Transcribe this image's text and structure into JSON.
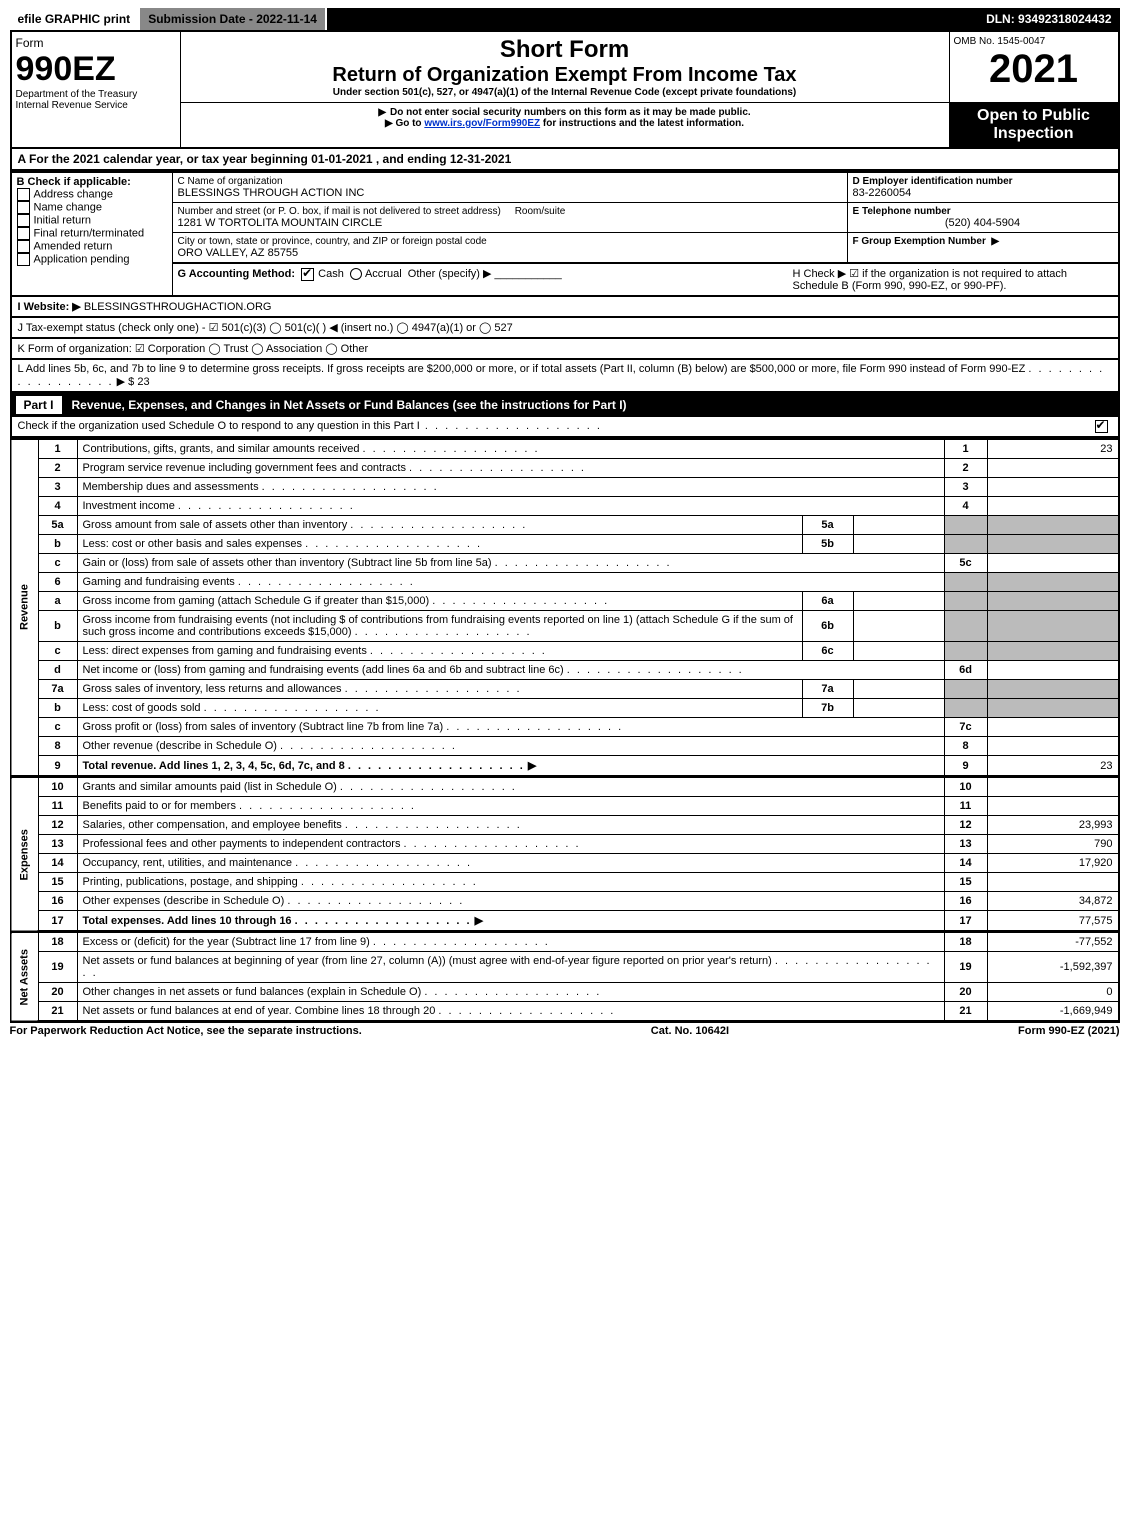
{
  "topbar": {
    "efile": "efile GRAPHIC print",
    "submission": "Submission Date - 2022-11-14",
    "dln": "DLN: 93492318024432"
  },
  "header": {
    "form_label": "Form",
    "form_no": "990EZ",
    "dept": "Department of the Treasury\nInternal Revenue Service",
    "short_form": "Short Form",
    "return_title": "Return of Organization Exempt From Income Tax",
    "subtitle": "Under section 501(c), 527, or 4947(a)(1) of the Internal Revenue Code (except private foundations)",
    "warn1": "Do not enter social security numbers on this form as it may be made public.",
    "warn2_pre": "Go to ",
    "warn2_link": "www.irs.gov/Form990EZ",
    "warn2_post": " for instructions and the latest information.",
    "omb": "OMB No. 1545-0047",
    "year": "2021",
    "open": "Open to Public Inspection"
  },
  "A": "A  For the 2021 calendar year, or tax year beginning 01-01-2021 , and ending 12-31-2021",
  "B": {
    "label": "B  Check if applicable:",
    "items": [
      "Address change",
      "Name change",
      "Initial return",
      "Final return/terminated",
      "Amended return",
      "Application pending"
    ]
  },
  "C": {
    "name_label": "C Name of organization",
    "name": "BLESSINGS THROUGH ACTION INC",
    "street_label": "Number and street (or P. O. box, if mail is not delivered to street address)",
    "room_label": "Room/suite",
    "street": "1281 W TORTOLITA MOUNTAIN CIRCLE",
    "city_label": "City or town, state or province, country, and ZIP or foreign postal code",
    "city": "ORO VALLEY, AZ  85755"
  },
  "D": {
    "label": "D Employer identification number",
    "value": "83-2260054"
  },
  "E": {
    "label": "E Telephone number",
    "value": "(520) 404-5904"
  },
  "F": {
    "label": "F Group Exemption Number"
  },
  "G": {
    "label": "G Accounting Method:",
    "cash": "Cash",
    "accrual": "Accrual",
    "other": "Other (specify)"
  },
  "H": "H  Check ▶ ☑ if the organization is not required to attach Schedule B (Form 990, 990-EZ, or 990-PF).",
  "I": {
    "label": "I Website: ▶",
    "value": "BLESSINGSTHROUGHACTION.ORG"
  },
  "J": "J Tax-exempt status (check only one) - ☑ 501(c)(3)  ◯ 501(c)(  ) ◀ (insert no.)  ◯ 4947(a)(1) or  ◯ 527",
  "K": "K Form of organization:  ☑ Corporation  ◯ Trust  ◯ Association  ◯ Other",
  "L": {
    "text": "L Add lines 5b, 6c, and 7b to line 9 to determine gross receipts. If gross receipts are $200,000 or more, or if total assets (Part II, column (B) below) are $500,000 or more, file Form 990 instead of Form 990-EZ",
    "arrow": "▶ $ 23"
  },
  "part1": {
    "label": "Part I",
    "title": "Revenue, Expenses, and Changes in Net Assets or Fund Balances (see the instructions for Part I)",
    "check_line": "Check if the organization used Schedule O to respond to any question in this Part I"
  },
  "sections": {
    "revenue": "Revenue",
    "expenses": "Expenses",
    "netassets": "Net Assets"
  },
  "lines": [
    {
      "n": "1",
      "desc": "Contributions, gifts, grants, and similar amounts received",
      "rn": "1",
      "rv": "23"
    },
    {
      "n": "2",
      "desc": "Program service revenue including government fees and contracts",
      "rn": "2",
      "rv": ""
    },
    {
      "n": "3",
      "desc": "Membership dues and assessments",
      "rn": "3",
      "rv": ""
    },
    {
      "n": "4",
      "desc": "Investment income",
      "rn": "4",
      "rv": ""
    },
    {
      "n": "5a",
      "desc": "Gross amount from sale of assets other than inventory",
      "sb": "5a",
      "sv": "",
      "shaded": true
    },
    {
      "n": "b",
      "desc": "Less: cost or other basis and sales expenses",
      "sb": "5b",
      "sv": "",
      "shaded": true
    },
    {
      "n": "c",
      "desc": "Gain or (loss) from sale of assets other than inventory (Subtract line 5b from line 5a)",
      "rn": "5c",
      "rv": ""
    },
    {
      "n": "6",
      "desc": "Gaming and fundraising events",
      "shaded": true,
      "noright": true
    },
    {
      "n": "a",
      "desc": "Gross income from gaming (attach Schedule G if greater than $15,000)",
      "sb": "6a",
      "sv": "",
      "shaded": true
    },
    {
      "n": "b",
      "desc": "Gross income from fundraising events (not including $                    of contributions from fundraising events reported on line 1) (attach Schedule G if the sum of such gross income and contributions exceeds $15,000)",
      "sb": "6b",
      "sv": "",
      "shaded": true
    },
    {
      "n": "c",
      "desc": "Less: direct expenses from gaming and fundraising events",
      "sb": "6c",
      "sv": "",
      "shaded": true
    },
    {
      "n": "d",
      "desc": "Net income or (loss) from gaming and fundraising events (add lines 6a and 6b and subtract line 6c)",
      "rn": "6d",
      "rv": ""
    },
    {
      "n": "7a",
      "desc": "Gross sales of inventory, less returns and allowances",
      "sb": "7a",
      "sv": "",
      "shaded": true
    },
    {
      "n": "b",
      "desc": "Less: cost of goods sold",
      "sb": "7b",
      "sv": "",
      "shaded": true
    },
    {
      "n": "c",
      "desc": "Gross profit or (loss) from sales of inventory (Subtract line 7b from line 7a)",
      "rn": "7c",
      "rv": ""
    },
    {
      "n": "8",
      "desc": "Other revenue (describe in Schedule O)",
      "rn": "8",
      "rv": ""
    },
    {
      "n": "9",
      "desc": "Total revenue. Add lines 1, 2, 3, 4, 5c, 6d, 7c, and 8",
      "rn": "9",
      "rv": "23",
      "bold": true,
      "arrow": true
    }
  ],
  "exp_lines": [
    {
      "n": "10",
      "desc": "Grants and similar amounts paid (list in Schedule O)",
      "rn": "10",
      "rv": ""
    },
    {
      "n": "11",
      "desc": "Benefits paid to or for members",
      "rn": "11",
      "rv": ""
    },
    {
      "n": "12",
      "desc": "Salaries, other compensation, and employee benefits",
      "rn": "12",
      "rv": "23,993"
    },
    {
      "n": "13",
      "desc": "Professional fees and other payments to independent contractors",
      "rn": "13",
      "rv": "790"
    },
    {
      "n": "14",
      "desc": "Occupancy, rent, utilities, and maintenance",
      "rn": "14",
      "rv": "17,920"
    },
    {
      "n": "15",
      "desc": "Printing, publications, postage, and shipping",
      "rn": "15",
      "rv": ""
    },
    {
      "n": "16",
      "desc": "Other expenses (describe in Schedule O)",
      "rn": "16",
      "rv": "34,872"
    },
    {
      "n": "17",
      "desc": "Total expenses. Add lines 10 through 16",
      "rn": "17",
      "rv": "77,575",
      "bold": true,
      "arrow": true
    }
  ],
  "na_lines": [
    {
      "n": "18",
      "desc": "Excess or (deficit) for the year (Subtract line 17 from line 9)",
      "rn": "18",
      "rv": "-77,552"
    },
    {
      "n": "19",
      "desc": "Net assets or fund balances at beginning of year (from line 27, column (A)) (must agree with end-of-year figure reported on prior year's return)",
      "rn": "19",
      "rv": "-1,592,397"
    },
    {
      "n": "20",
      "desc": "Other changes in net assets or fund balances (explain in Schedule O)",
      "rn": "20",
      "rv": "0"
    },
    {
      "n": "21",
      "desc": "Net assets or fund balances at end of year. Combine lines 18 through 20",
      "rn": "21",
      "rv": "-1,669,949"
    }
  ],
  "footer": {
    "left": "For Paperwork Reduction Act Notice, see the separate instructions.",
    "mid": "Cat. No. 10642I",
    "right": "Form 990-EZ (2021)"
  }
}
